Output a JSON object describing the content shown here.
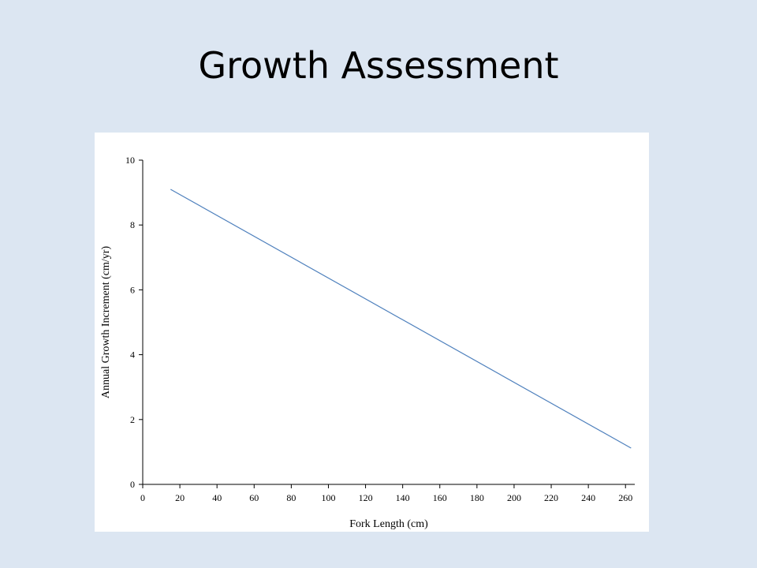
{
  "slide": {
    "title": "Growth Assessment"
  },
  "chart_data": {
    "type": "line",
    "title": "",
    "xlabel": "Fork Length (cm)",
    "ylabel": "Annual Growth Increment (cm/yr)",
    "xlim": [
      0,
      265
    ],
    "ylim": [
      0,
      10
    ],
    "xticks": [
      0,
      20,
      40,
      60,
      80,
      100,
      120,
      140,
      160,
      180,
      200,
      220,
      240,
      260
    ],
    "yticks": [
      0,
      2,
      4,
      6,
      8,
      10
    ],
    "grid": false,
    "legend": "none",
    "series": [
      {
        "color": "#4f81bd",
        "x": [
          15,
          263
        ],
        "y": [
          9.1,
          1.12
        ]
      }
    ]
  }
}
